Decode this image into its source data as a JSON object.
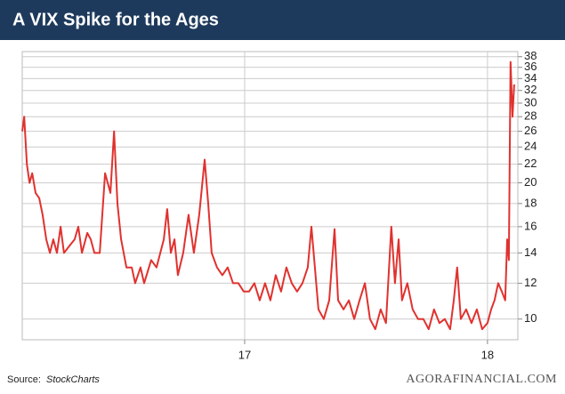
{
  "chart_data": {
    "type": "line",
    "title": "A VIX Spike for the Ages",
    "source_label": "Source:",
    "source": "StockCharts",
    "credit": "AGORAFINANCIAL.COM",
    "color": "#e0322f",
    "log_y": true,
    "grid": true,
    "x": [
      2016.084,
      2016.092,
      2016.103,
      2016.114,
      2016.125,
      2016.139,
      2016.154,
      2016.168,
      2016.183,
      2016.198,
      2016.212,
      2016.227,
      2016.242,
      2016.256,
      2016.278,
      2016.3,
      2016.315,
      2016.33,
      2016.352,
      2016.366,
      2016.381,
      2016.403,
      2016.425,
      2016.447,
      2016.462,
      2016.476,
      2016.491,
      2016.513,
      2016.535,
      2016.549,
      2016.571,
      2016.586,
      2016.615,
      2016.637,
      2016.667,
      2016.681,
      2016.696,
      2016.711,
      2016.725,
      2016.747,
      2016.769,
      2016.791,
      2016.813,
      2016.835,
      2016.85,
      2016.864,
      2016.886,
      2016.908,
      2016.93,
      2016.952,
      2016.974,
      2016.996,
      2017.018,
      2017.04,
      2017.062,
      2017.084,
      2017.106,
      2017.128,
      2017.15,
      2017.172,
      2017.194,
      2017.216,
      2017.238,
      2017.26,
      2017.275,
      2017.289,
      2017.304,
      2017.326,
      2017.348,
      2017.37,
      2017.385,
      2017.407,
      2017.429,
      2017.451,
      2017.473,
      2017.495,
      2017.516,
      2017.538,
      2017.56,
      2017.582,
      2017.604,
      2017.619,
      2017.634,
      2017.648,
      2017.67,
      2017.692,
      2017.714,
      2017.736,
      2017.758,
      2017.78,
      2017.802,
      2017.824,
      2017.846,
      2017.861,
      2017.875,
      2017.89,
      2017.912,
      2017.934,
      2017.956,
      2017.978,
      2018.0,
      2018.015,
      2018.029,
      2018.044,
      2018.059,
      2018.073,
      2018.081,
      2018.088,
      2018.095,
      2018.103,
      2018.11
    ],
    "values": [
      26,
      28,
      22,
      20,
      21,
      19,
      18.5,
      17,
      15,
      14,
      15,
      14,
      16,
      14,
      14.5,
      15,
      16,
      14,
      15.5,
      15,
      14,
      14,
      21,
      19,
      26,
      18,
      15,
      13,
      13,
      12,
      13,
      12,
      13.5,
      13,
      15,
      17.5,
      14,
      15,
      12.5,
      14,
      17,
      14,
      17,
      22.5,
      18,
      14,
      13,
      12.5,
      13,
      12,
      12,
      11.5,
      11.5,
      12,
      11,
      12,
      11,
      12.5,
      11.5,
      13,
      12,
      11.5,
      12,
      13,
      16,
      13,
      10.5,
      10,
      11,
      15.8,
      11,
      10.5,
      11,
      10,
      11,
      12,
      10,
      9.5,
      10.5,
      9.8,
      16,
      12,
      15,
      11,
      12,
      10.5,
      10,
      10,
      9.5,
      10.5,
      9.8,
      10,
      9.5,
      11,
      13,
      10,
      10.5,
      9.8,
      10.5,
      9.5,
      9.8,
      10.5,
      11,
      12,
      11.5,
      11,
      15,
      13.5,
      37,
      28,
      33
    ],
    "xlim": [
      2016.084,
      2018.125
    ],
    "xticks": [
      {
        "value": 2017,
        "label": "17"
      },
      {
        "value": 2018,
        "label": "18"
      }
    ],
    "ylim": [
      9,
      39
    ],
    "yticks": [
      10,
      12,
      14,
      16,
      18,
      20,
      22,
      24,
      26,
      28,
      30,
      32,
      34,
      36,
      38
    ]
  }
}
